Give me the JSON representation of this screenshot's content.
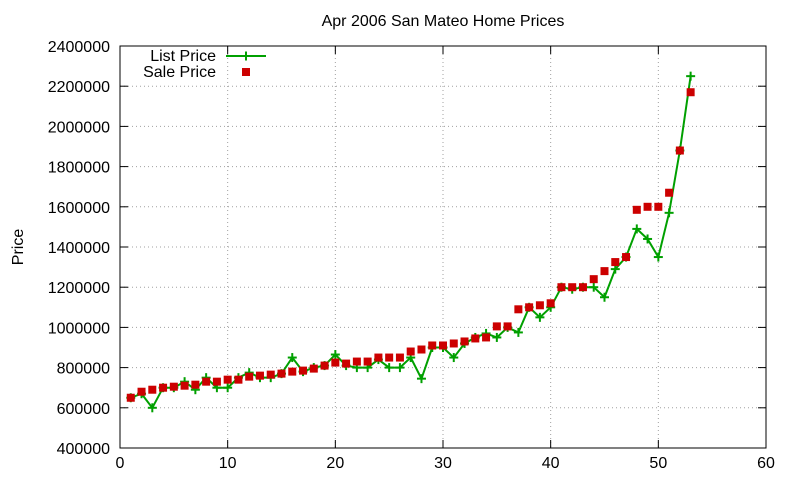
{
  "chart_data": {
    "type": "line",
    "title": "Apr 2006 San Mateo Home Prices",
    "xlabel": "",
    "ylabel": "Price",
    "xlim": [
      0,
      60
    ],
    "ylim": [
      400000,
      2400000
    ],
    "xticks": [
      0,
      10,
      20,
      30,
      40,
      50,
      60
    ],
    "yticks": [
      400000,
      600000,
      800000,
      1000000,
      1200000,
      1400000,
      1600000,
      1800000,
      2000000,
      2200000,
      2400000
    ],
    "grid": true,
    "legend_position": "top-left",
    "x": [
      1,
      2,
      3,
      4,
      5,
      6,
      7,
      8,
      9,
      10,
      11,
      12,
      13,
      14,
      15,
      16,
      17,
      18,
      19,
      20,
      21,
      22,
      23,
      24,
      25,
      26,
      27,
      28,
      29,
      30,
      31,
      32,
      33,
      34,
      35,
      36,
      37,
      38,
      39,
      40,
      41,
      42,
      43,
      44,
      45,
      46,
      47,
      48,
      49,
      50,
      51,
      52,
      53
    ],
    "series": [
      {
        "name": "List Price",
        "style": "linespoints",
        "marker": "plus",
        "color": "#00a000",
        "values": [
          650000,
          670000,
          600000,
          700000,
          700000,
          730000,
          690000,
          750000,
          700000,
          700000,
          750000,
          775000,
          750000,
          750000,
          770000,
          850000,
          780000,
          800000,
          810000,
          865000,
          810000,
          800000,
          800000,
          840000,
          800000,
          800000,
          850000,
          745000,
          900000,
          900000,
          850000,
          920000,
          950000,
          970000,
          950000,
          1000000,
          975000,
          1100000,
          1050000,
          1100000,
          1200000,
          1190000,
          1200000,
          1200000,
          1150000,
          1290000,
          1350000,
          1490000,
          1440000,
          1350000,
          1570000,
          1880000,
          2250000
        ]
      },
      {
        "name": "Sale Price",
        "style": "points",
        "marker": "square",
        "color": "#cc0000",
        "values": [
          650000,
          680000,
          690000,
          700000,
          705000,
          710000,
          715000,
          730000,
          730000,
          740000,
          740000,
          755000,
          760000,
          765000,
          770000,
          780000,
          785000,
          795000,
          810000,
          825000,
          820000,
          830000,
          830000,
          850000,
          850000,
          850000,
          880000,
          890000,
          910000,
          910000,
          920000,
          930000,
          945000,
          950000,
          1005000,
          1005000,
          1090000,
          1100000,
          1110000,
          1120000,
          1200000,
          1200000,
          1200000,
          1240000,
          1280000,
          1325000,
          1350000,
          1585000,
          1600000,
          1600000,
          1670000,
          1880000,
          2170000
        ]
      }
    ]
  }
}
